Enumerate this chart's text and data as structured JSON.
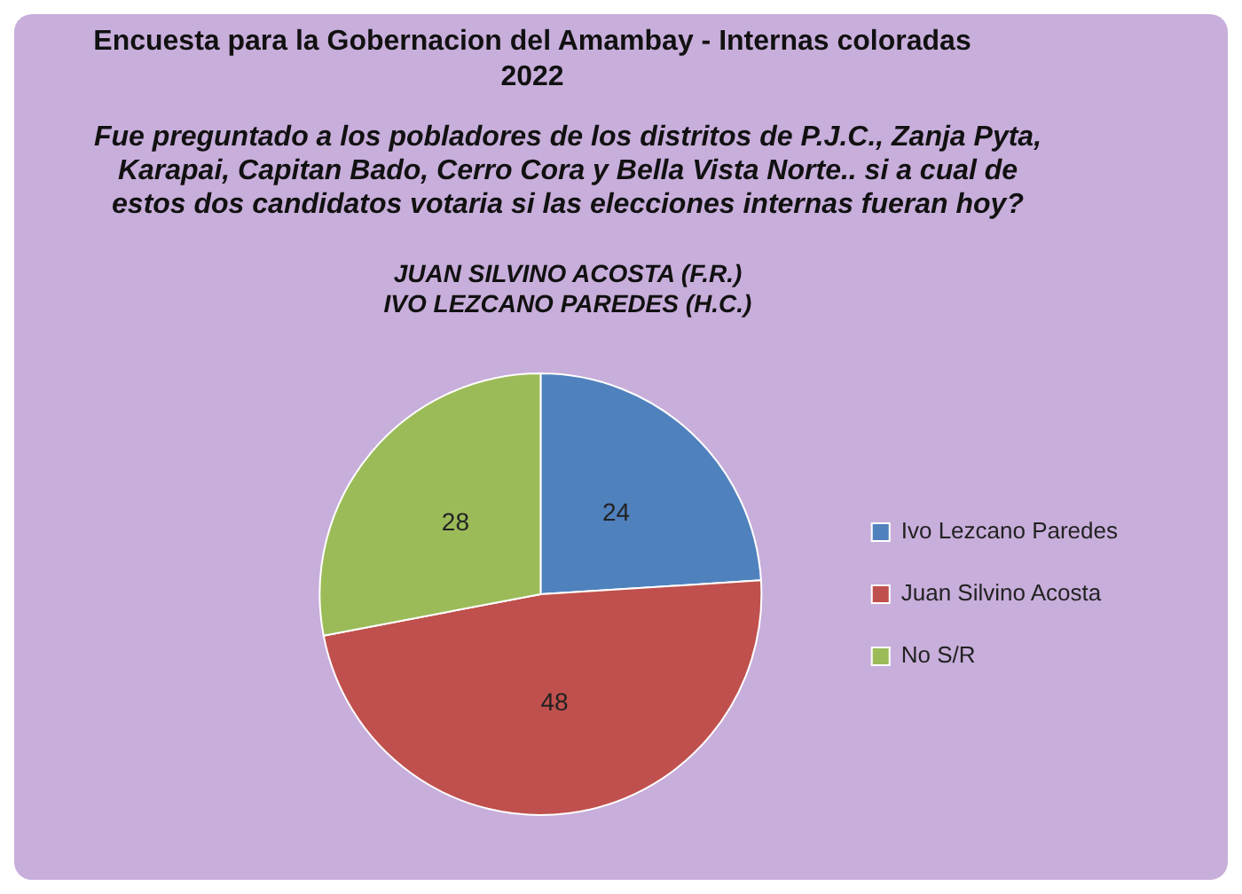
{
  "chart_data": {
    "type": "pie",
    "title": "Encuesta para la Gobernacion del Amambay - Internas coloradas 2022",
    "subtitle": "Fue preguntado a los pobladores de los distritos de P.J.C., Zanja Pyta, Karapai, Capitan Bado, Cerro Cora y Bella Vista Norte.. si a cual de estos dos candidatos votaria si las elecciones internas fueran hoy?",
    "annotations": [
      "JUAN SILVINO ACOSTA (F.R.)",
      "IVO LEZCANO PAREDES (H.C.)"
    ],
    "categories": [
      "Ivo Lezcano Paredes",
      "Juan Silvino Acosta",
      "No S/R"
    ],
    "values": [
      24,
      48,
      28
    ],
    "colors": [
      "#4f81bd",
      "#c0504d",
      "#9bbb59"
    ],
    "data_labels": true,
    "legend": "right"
  }
}
